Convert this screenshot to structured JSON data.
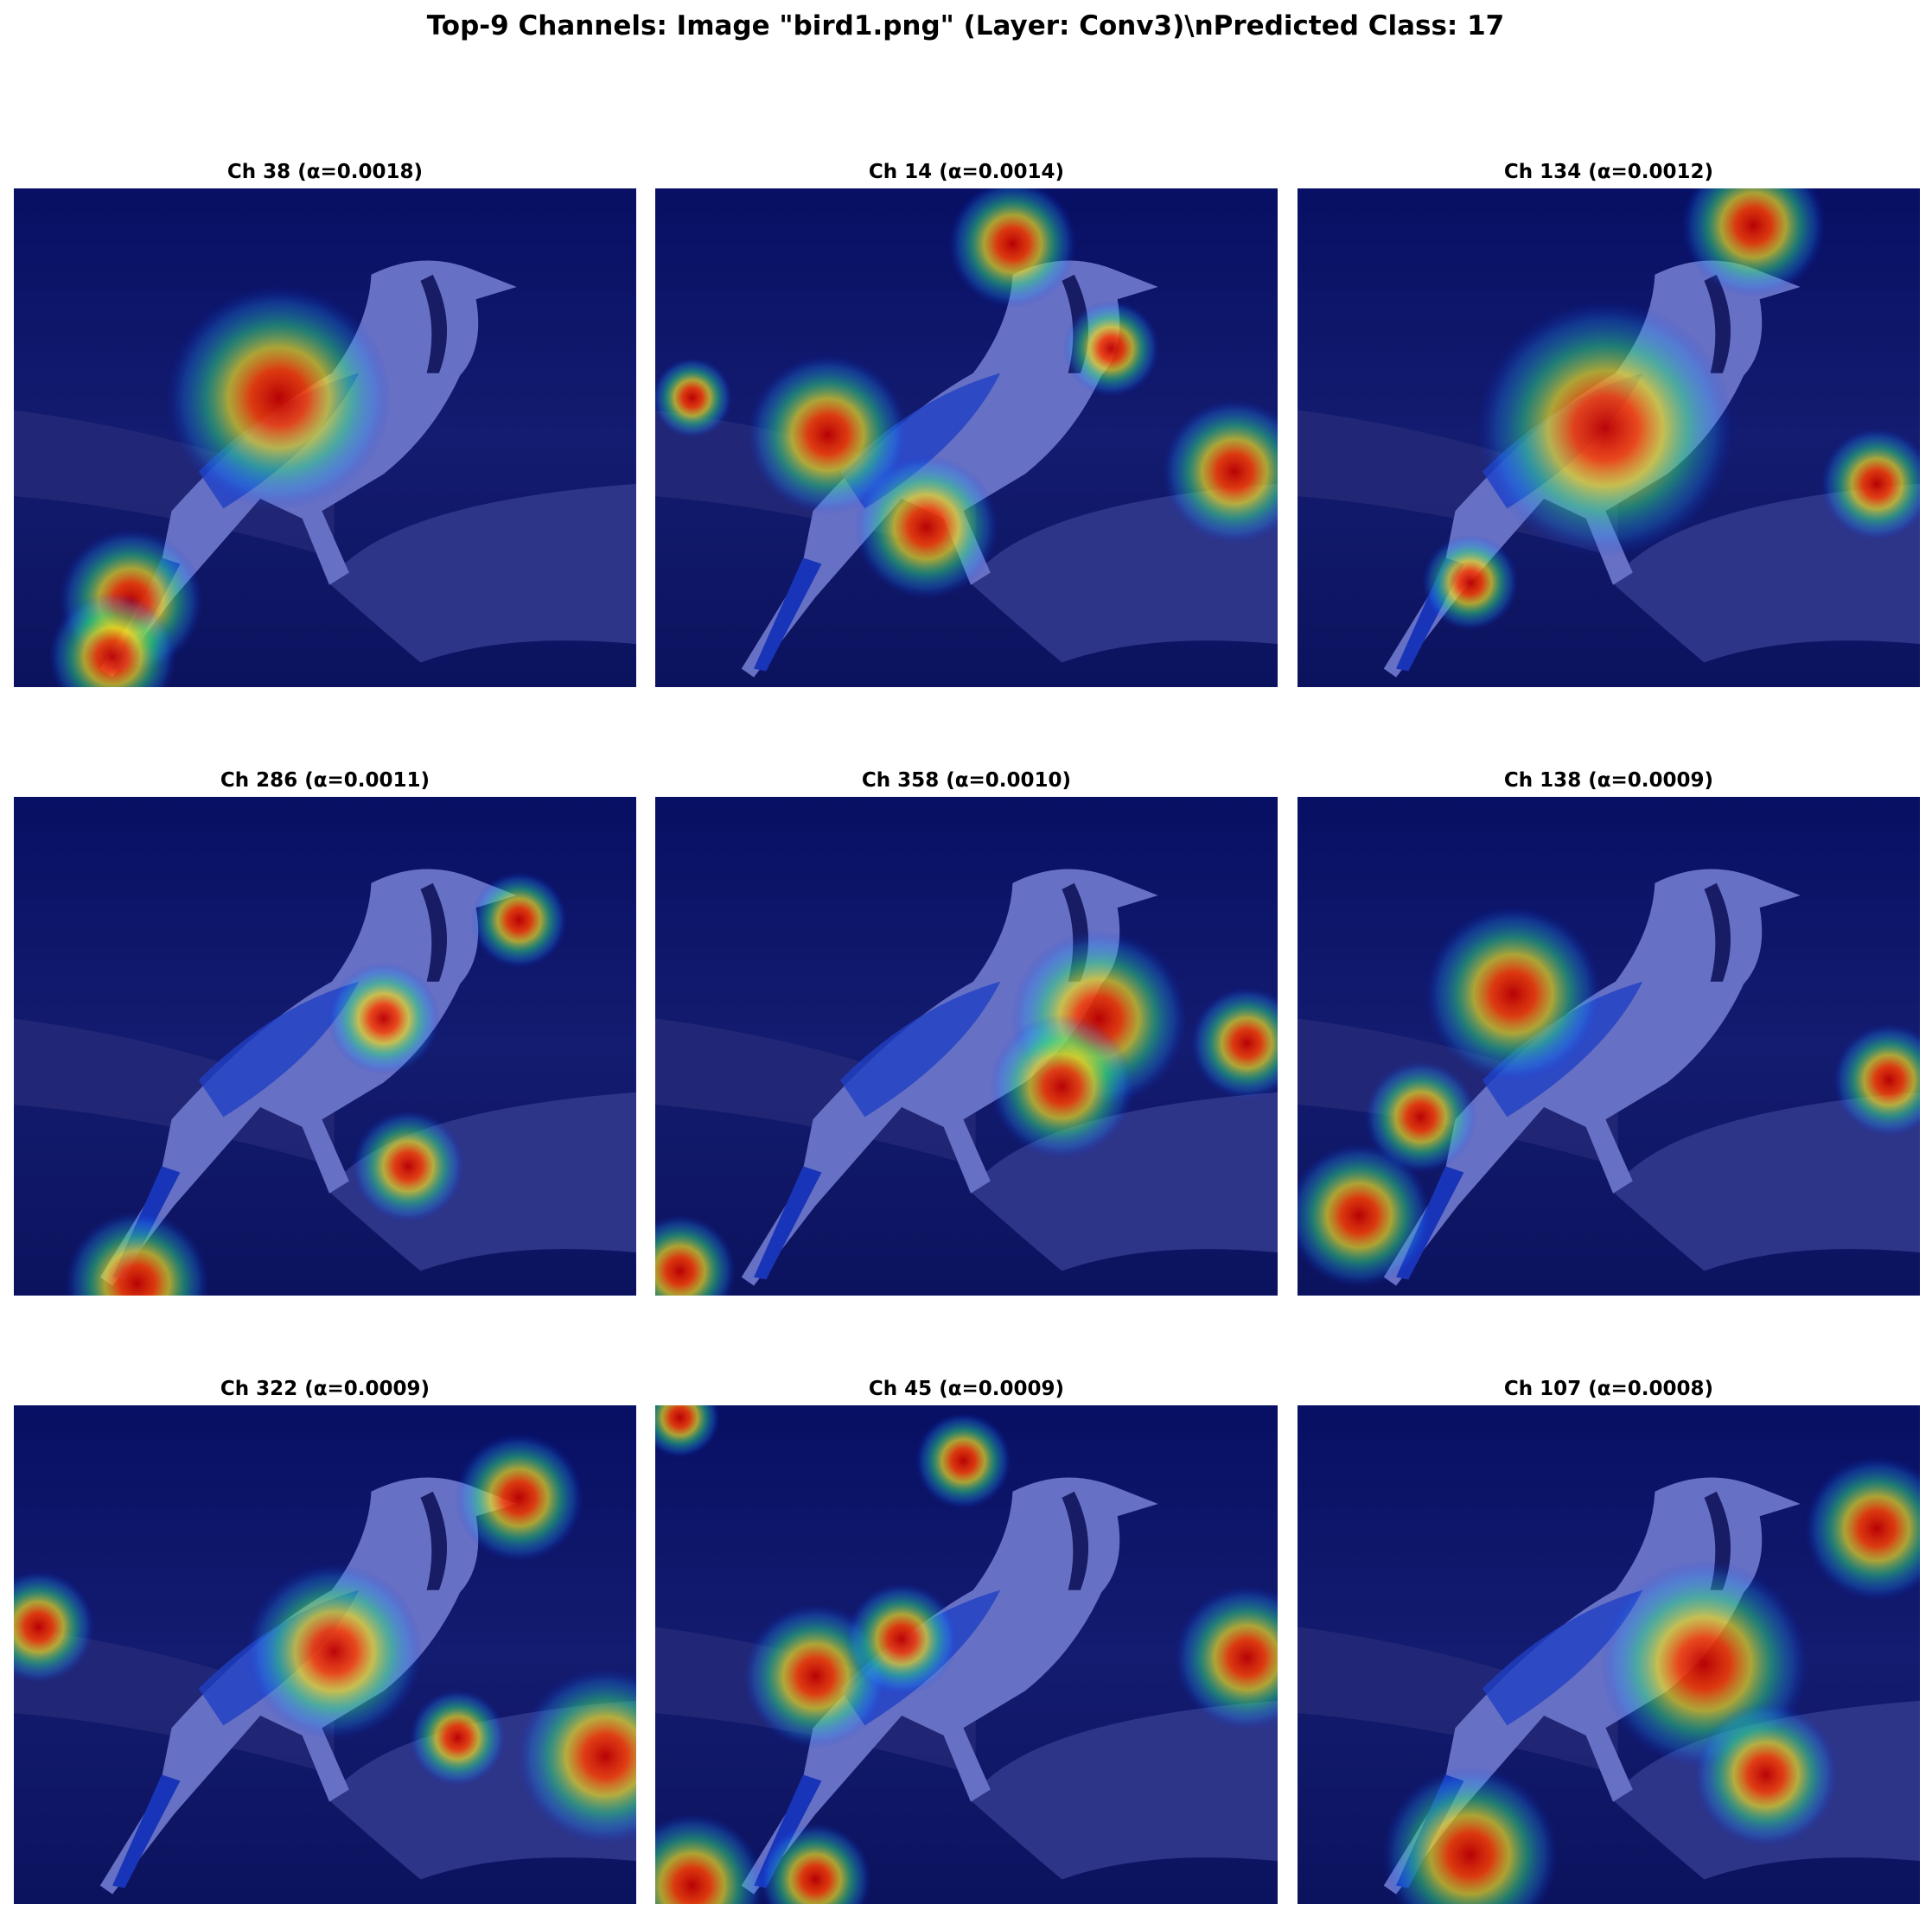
{
  "title": "Top-9 Channels: Image \"bird1.png\" (Layer: Conv3)\\nPredicted Class: 17",
  "panels": [
    {
      "title": "Ch 38 (α=0.0018)"
    },
    {
      "title": "Ch 14 (α=0.0014)"
    },
    {
      "title": "Ch 134 (α=0.0012)"
    },
    {
      "title": "Ch 286 (α=0.0011)"
    },
    {
      "title": "Ch 358 (α=0.0010)"
    },
    {
      "title": "Ch 138 (α=0.0009)"
    },
    {
      "title": "Ch 322 (α=0.0009)"
    },
    {
      "title": "Ch 45 (α=0.0009)"
    },
    {
      "title": "Ch 107 (α=0.0008)"
    }
  ]
}
